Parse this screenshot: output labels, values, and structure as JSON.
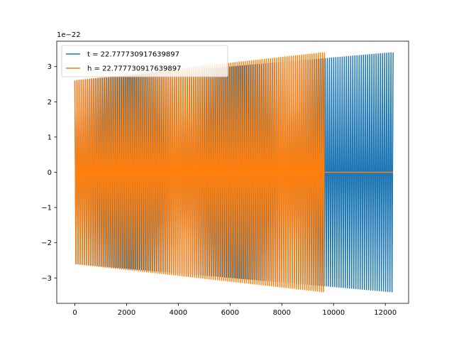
{
  "chart_data": {
    "type": "line",
    "title": "",
    "xlabel": "",
    "ylabel": "",
    "y_offset_label": "1e−22",
    "xlim": [
      -700,
      12900
    ],
    "ylim": [
      -3.72,
      3.72
    ],
    "x_ticks": [
      0,
      2000,
      4000,
      6000,
      8000,
      10000,
      12000
    ],
    "y_ticks": [
      -3,
      -2,
      -1,
      0,
      1,
      2,
      3
    ],
    "x_tick_labels": [
      "0",
      "2000",
      "4000",
      "6000",
      "8000",
      "10000",
      "12000"
    ],
    "y_tick_labels": [
      "−3",
      "−2",
      "−1",
      "0",
      "1",
      "2",
      "3"
    ],
    "grid": false,
    "legend_position": "top-left",
    "series": [
      {
        "name": "t = 22.777730917639897",
        "color": "#1f77b4",
        "x_start": 0,
        "x_end": 12300,
        "amplitude_start": 2.6,
        "amplitude_end": 3.4,
        "oscillation_count": 150
      },
      {
        "name": "h = 22.777730917639897",
        "color": "#ff7f0e",
        "x_start": 0,
        "x_end": 9650,
        "amplitude_start": 2.6,
        "amplitude_end": 3.4,
        "oscillation_count": 120,
        "flat_after_value": 0
      }
    ]
  }
}
